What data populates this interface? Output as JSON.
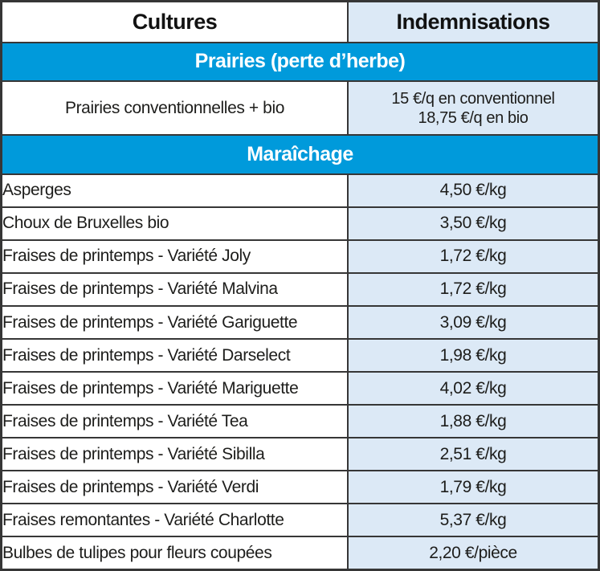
{
  "table": {
    "header": {
      "cultures": "Cultures",
      "indemnisations": "Indemnisations"
    },
    "sections": [
      {
        "title": "Prairies (perte d’herbe)",
        "rows": [
          {
            "culture": "Prairies conventionnelles + bio",
            "indemnisation": "15 €/q en conventionnel\n18,75 €/q en bio"
          }
        ]
      },
      {
        "title": "Maraîchage",
        "rows": [
          {
            "culture": "Asperges",
            "indemnisation": "4,50 €/kg"
          },
          {
            "culture": "Choux de Bruxelles bio",
            "indemnisation": "3,50 €/kg"
          },
          {
            "culture": "Fraises de printemps - Variété Joly",
            "indemnisation": "1,72 €/kg"
          },
          {
            "culture": "Fraises de printemps - Variété Malvina",
            "indemnisation": "1,72 €/kg"
          },
          {
            "culture": "Fraises de printemps - Variété Gariguette",
            "indemnisation": "3,09 €/kg"
          },
          {
            "culture": "Fraises de printemps - Variété Darselect",
            "indemnisation": "1,98 €/kg"
          },
          {
            "culture": "Fraises de printemps - Variété Mariguette",
            "indemnisation": "4,02 €/kg"
          },
          {
            "culture": "Fraises de printemps - Variété Tea",
            "indemnisation": "1,88 €/kg"
          },
          {
            "culture": "Fraises de printemps - Variété Sibilla",
            "indemnisation": "2,51 €/kg"
          },
          {
            "culture": "Fraises de printemps - Variété Verdi",
            "indemnisation": "1,79 €/kg"
          },
          {
            "culture": "Fraises remontantes - Variété Charlotte",
            "indemnisation": "5,37 €/kg"
          },
          {
            "culture": "Bulbes de tulipes pour fleurs coupées",
            "indemnisation": "2,20 €/pièce"
          }
        ]
      }
    ]
  },
  "colors": {
    "section_bar": "#009ADB",
    "section_text": "#FFFFFF",
    "value_cell_background": "#DCE9F6",
    "border": "#363636",
    "text": "#1D1D1B"
  }
}
